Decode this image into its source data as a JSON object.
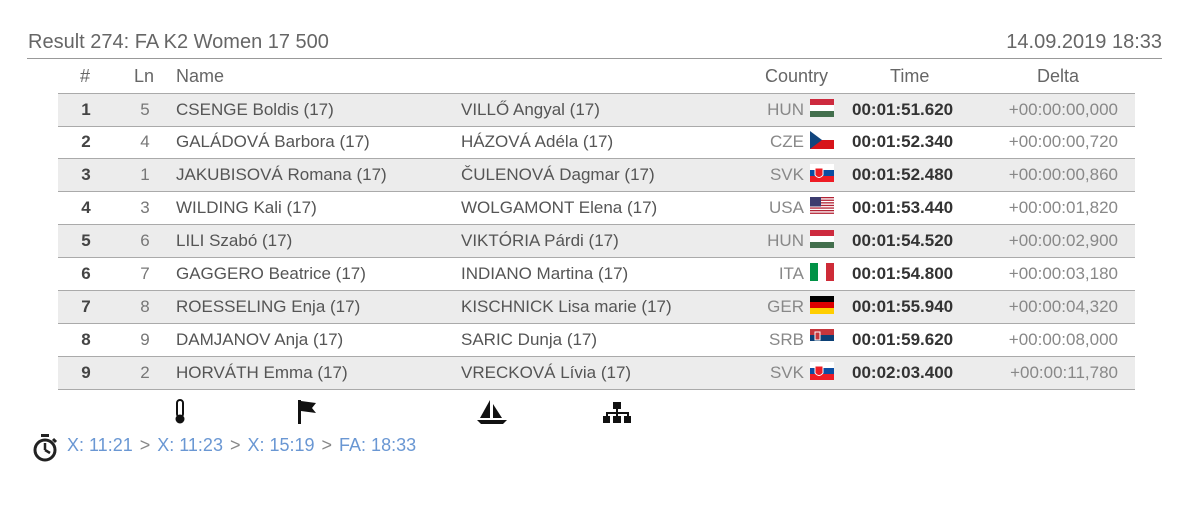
{
  "header": {
    "title": "Result 274: FA K2 Women 17 500",
    "date": "14.09.2019 18:33"
  },
  "table": {
    "columns": [
      "#",
      "Ln",
      "Name",
      "Country",
      "Time",
      "Delta"
    ],
    "rows": [
      [
        "1",
        "5",
        "CSENGE Boldis (17)",
        "VILLŐ Angyal (17)",
        "HUN",
        "00:01:51.620",
        "+00:00:00,000"
      ],
      [
        "2",
        "4",
        "GALÁDOVÁ Barbora (17)",
        "HÁZOVÁ Adéla (17)",
        "CZE",
        "00:01:52.340",
        "+00:00:00,720"
      ],
      [
        "3",
        "1",
        "JAKUBISOVÁ Romana (17)",
        "ČULENOVÁ Dagmar (17)",
        "SVK",
        "00:01:52.480",
        "+00:00:00,860"
      ],
      [
        "4",
        "3",
        "WILDING Kali (17)",
        "WOLGAMONT Elena (17)",
        "USA",
        "00:01:53.440",
        "+00:00:01,820"
      ],
      [
        "5",
        "6",
        "LILI Szabó (17)",
        "VIKTÓRIA Párdi (17)",
        "HUN",
        "00:01:54.520",
        "+00:00:02,900"
      ],
      [
        "6",
        "7",
        "GAGGERO Beatrice (17)",
        "INDIANO Martina (17)",
        "ITA",
        "00:01:54.800",
        "+00:00:03,180"
      ],
      [
        "7",
        "8",
        "ROESSELING Enja (17)",
        "KISCHNICK Lisa marie (17)",
        "GER",
        "00:01:55.940",
        "+00:00:04,320"
      ],
      [
        "8",
        "9",
        "DAMJANOV Anja (17)",
        "SARIC Dunja (17)",
        "SRB",
        "00:01:59.620",
        "+00:00:08,000"
      ],
      [
        "9",
        "2",
        "HORVÁTH Emma (17)",
        "VRECKOVÁ Lívia (17)",
        "SVK",
        "00:02:03.400",
        "+00:00:11,780"
      ]
    ]
  },
  "progression": {
    "stages": [
      "X: 11:21",
      "X: 11:23",
      "X: 15:19",
      "FA: 18:33"
    ],
    "separator": ">"
  }
}
